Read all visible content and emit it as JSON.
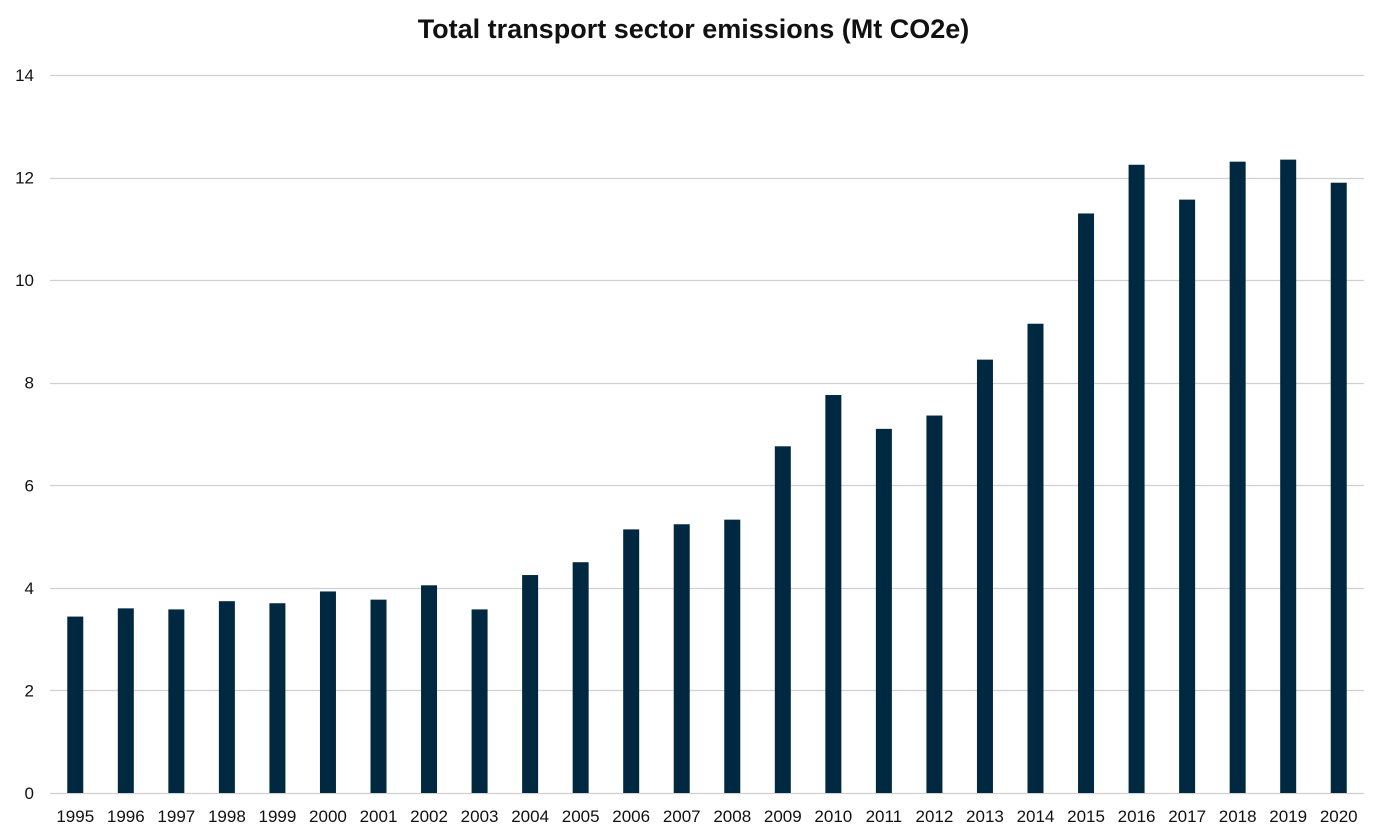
{
  "chart_data": {
    "type": "bar",
    "title": "Total transport sector emissions (Mt CO2e)",
    "xlabel": "",
    "ylabel": "",
    "categories": [
      "1995",
      "1996",
      "1997",
      "1998",
      "1999",
      "2000",
      "2001",
      "2002",
      "2003",
      "2004",
      "2005",
      "2006",
      "2007",
      "2008",
      "2009",
      "2010",
      "2011",
      "2012",
      "2013",
      "2014",
      "2015",
      "2016",
      "2017",
      "2018",
      "2019",
      "2020"
    ],
    "values": [
      3.44,
      3.6,
      3.58,
      3.74,
      3.7,
      3.93,
      3.77,
      4.05,
      3.58,
      4.25,
      4.5,
      5.14,
      5.24,
      5.33,
      6.76,
      7.76,
      7.1,
      7.36,
      8.45,
      9.15,
      11.3,
      12.25,
      11.57,
      12.31,
      12.35,
      11.9
    ],
    "ylim": [
      0,
      14
    ],
    "yticks": [
      0,
      2,
      4,
      6,
      8,
      10,
      12,
      14
    ],
    "grid": true,
    "legend": "none",
    "colors": {
      "bar": "#002840",
      "grid": "#d0d0d0",
      "text": "#111111"
    }
  }
}
